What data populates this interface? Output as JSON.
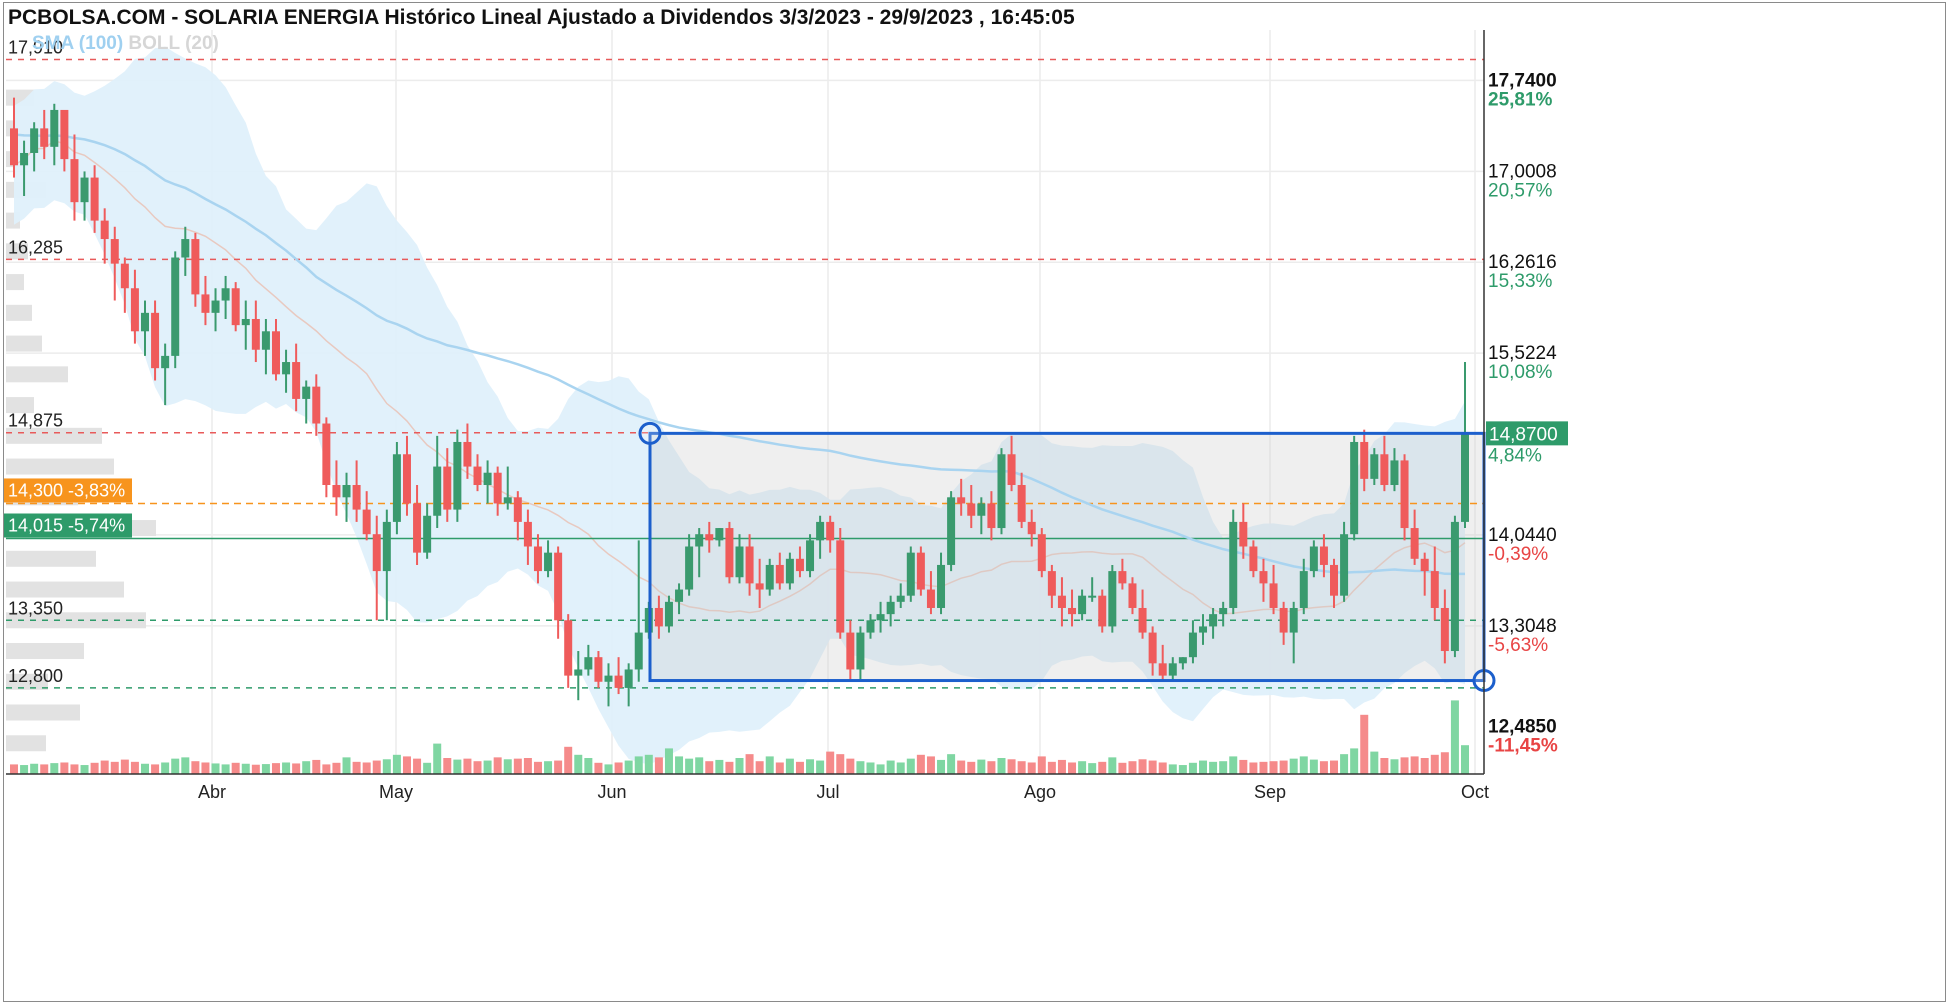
{
  "title": "PCBOLSA.COM - SOLARIA ENERGIA Histórico Lineal Ajustado a Dividendos 3/3/2023 - 29/9/2023 , 16:45:05",
  "indicators": {
    "sma": "SMA (100)",
    "boll": "BOLL (20)"
  },
  "colors": {
    "up": "#3a9a6e",
    "down": "#ef5b5b",
    "sma": "#a9d4f0",
    "boll_fill": "#dff0fb",
    "box": "#1c5fcc",
    "orange": "#f7941d",
    "green_line": "#2e9b6a"
  },
  "chart_data": {
    "type": "candlestick",
    "ylim": [
      12.1,
      18.15
    ],
    "x_ticks": [
      "Abr",
      "May",
      "Jun",
      "Jul",
      "Ago",
      "Sep",
      "Oct"
    ],
    "right_axis": [
      {
        "price": "17,7400",
        "pct": "25,81%",
        "bold": true,
        "pct_color": "green"
      },
      {
        "price": "17,0008",
        "pct": "20,57%",
        "bold": false,
        "pct_color": "green"
      },
      {
        "price": "16,2616",
        "pct": "15,33%",
        "bold": false,
        "pct_color": "green"
      },
      {
        "price": "15,5224",
        "pct": "10,08%",
        "bold": false,
        "pct_color": "green"
      },
      {
        "price": "14,0440",
        "pct": "-0,39%",
        "bold": false,
        "pct_color": "red"
      },
      {
        "price": "13,3048",
        "pct": "-5,63%",
        "bold": false,
        "pct_color": "red"
      },
      {
        "price": "12,4850",
        "pct": "-11,45%",
        "bold": true,
        "pct_color": "red"
      }
    ],
    "last_price": {
      "price": "14,8700",
      "pct": "4,84%"
    },
    "levels": [
      {
        "value": 17.91,
        "label": "17,910",
        "style": "red-dash"
      },
      {
        "value": 16.285,
        "label": "16,285",
        "style": "red-dash"
      },
      {
        "value": 14.875,
        "label": "14,875",
        "style": "red-dash"
      },
      {
        "value": 14.3,
        "label": "14,300  -3,83%",
        "style": "orange-badge"
      },
      {
        "value": 14.015,
        "label": "14,015  -5,74%",
        "style": "green-badge"
      },
      {
        "value": 13.35,
        "label": "13,350",
        "style": "green-dash"
      },
      {
        "value": 12.8,
        "label": "12,800",
        "style": "green-dash"
      }
    ],
    "range_box": {
      "top": 14.87,
      "bottom": 12.86
    },
    "candles": [
      [
        17.35,
        17.6,
        16.95,
        17.05
      ],
      [
        17.05,
        17.25,
        16.8,
        17.15
      ],
      [
        17.15,
        17.4,
        17.0,
        17.35
      ],
      [
        17.35,
        17.5,
        17.1,
        17.2
      ],
      [
        17.2,
        17.55,
        17.05,
        17.5
      ],
      [
        17.5,
        17.45,
        17.0,
        17.1
      ],
      [
        17.1,
        17.3,
        16.6,
        16.75
      ],
      [
        16.75,
        17.0,
        16.6,
        16.95
      ],
      [
        16.95,
        17.05,
        16.5,
        16.6
      ],
      [
        16.6,
        16.7,
        16.25,
        16.45
      ],
      [
        16.45,
        16.55,
        15.95,
        16.25
      ],
      [
        16.25,
        16.3,
        15.85,
        16.05
      ],
      [
        16.05,
        16.2,
        15.6,
        15.7
      ],
      [
        15.7,
        15.95,
        15.5,
        15.85
      ],
      [
        15.85,
        15.95,
        15.3,
        15.4
      ],
      [
        15.4,
        15.6,
        15.1,
        15.5
      ],
      [
        15.5,
        16.35,
        15.4,
        16.3
      ],
      [
        16.3,
        16.55,
        16.15,
        16.45
      ],
      [
        16.45,
        16.5,
        15.9,
        16.0
      ],
      [
        16.0,
        16.15,
        15.75,
        15.85
      ],
      [
        15.85,
        16.05,
        15.7,
        15.95
      ],
      [
        15.95,
        16.15,
        15.8,
        16.05
      ],
      [
        16.05,
        16.1,
        15.7,
        15.75
      ],
      [
        15.75,
        15.95,
        15.55,
        15.8
      ],
      [
        15.8,
        15.95,
        15.45,
        15.55
      ],
      [
        15.55,
        15.8,
        15.35,
        15.7
      ],
      [
        15.7,
        15.8,
        15.3,
        15.35
      ],
      [
        15.35,
        15.55,
        15.2,
        15.45
      ],
      [
        15.45,
        15.6,
        15.05,
        15.15
      ],
      [
        15.15,
        15.3,
        14.95,
        15.25
      ],
      [
        15.25,
        15.35,
        14.85,
        14.95
      ],
      [
        14.95,
        15.0,
        14.35,
        14.45
      ],
      [
        14.45,
        14.65,
        14.2,
        14.35
      ],
      [
        14.35,
        14.55,
        14.15,
        14.45
      ],
      [
        14.45,
        14.65,
        14.15,
        14.25
      ],
      [
        14.25,
        14.4,
        14.0,
        14.05
      ],
      [
        14.05,
        14.2,
        13.35,
        13.75
      ],
      [
        13.75,
        14.25,
        13.35,
        14.15
      ],
      [
        14.15,
        14.8,
        14.05,
        14.7
      ],
      [
        14.7,
        14.85,
        14.2,
        14.3
      ],
      [
        14.3,
        14.45,
        13.8,
        13.9
      ],
      [
        13.9,
        14.3,
        13.85,
        14.2
      ],
      [
        14.2,
        14.85,
        14.1,
        14.6
      ],
      [
        14.6,
        14.75,
        14.15,
        14.25
      ],
      [
        14.25,
        14.9,
        14.15,
        14.8
      ],
      [
        14.8,
        14.95,
        14.5,
        14.6
      ],
      [
        14.6,
        14.7,
        14.4,
        14.45
      ],
      [
        14.45,
        14.65,
        14.3,
        14.55
      ],
      [
        14.55,
        14.6,
        14.2,
        14.3
      ],
      [
        14.3,
        14.6,
        14.25,
        14.35
      ],
      [
        14.35,
        14.4,
        14.0,
        14.15
      ],
      [
        14.15,
        14.25,
        13.8,
        13.95
      ],
      [
        13.95,
        14.05,
        13.65,
        13.75
      ],
      [
        13.75,
        14.0,
        13.7,
        13.9
      ],
      [
        13.9,
        13.95,
        13.2,
        13.35
      ],
      [
        13.35,
        13.4,
        12.8,
        12.9
      ],
      [
        12.9,
        13.1,
        12.7,
        12.95
      ],
      [
        12.95,
        13.15,
        12.9,
        13.05
      ],
      [
        13.05,
        13.1,
        12.8,
        12.85
      ],
      [
        12.85,
        13.0,
        12.65,
        12.9
      ],
      [
        12.9,
        13.05,
        12.75,
        12.8
      ],
      [
        12.8,
        13.0,
        12.65,
        12.95
      ],
      [
        12.95,
        14.0,
        12.85,
        13.25
      ],
      [
        13.25,
        13.5,
        13.2,
        13.45
      ],
      [
        13.45,
        13.55,
        13.2,
        13.3
      ],
      [
        13.3,
        13.55,
        13.25,
        13.5
      ],
      [
        13.5,
        13.65,
        13.4,
        13.6
      ],
      [
        13.6,
        14.05,
        13.55,
        13.95
      ],
      [
        13.95,
        14.1,
        13.7,
        14.05
      ],
      [
        14.05,
        14.15,
        13.9,
        14.0
      ],
      [
        14.0,
        14.1,
        13.95,
        14.1
      ],
      [
        14.1,
        14.15,
        13.65,
        13.7
      ],
      [
        13.7,
        14.05,
        13.65,
        13.95
      ],
      [
        13.95,
        14.05,
        13.55,
        13.65
      ],
      [
        13.65,
        13.85,
        13.45,
        13.6
      ],
      [
        13.6,
        13.85,
        13.55,
        13.8
      ],
      [
        13.8,
        13.9,
        13.6,
        13.65
      ],
      [
        13.65,
        13.9,
        13.6,
        13.85
      ],
      [
        13.85,
        13.95,
        13.7,
        13.75
      ],
      [
        13.75,
        14.05,
        13.7,
        14.0
      ],
      [
        14.0,
        14.2,
        13.85,
        14.15
      ],
      [
        14.15,
        14.2,
        13.9,
        14.0
      ],
      [
        14.0,
        14.1,
        13.2,
        13.25
      ],
      [
        13.25,
        13.35,
        12.85,
        12.95
      ],
      [
        12.95,
        13.3,
        12.85,
        13.25
      ],
      [
        13.25,
        13.4,
        13.2,
        13.35
      ],
      [
        13.35,
        13.5,
        13.25,
        13.4
      ],
      [
        13.4,
        13.55,
        13.3,
        13.5
      ],
      [
        13.5,
        13.65,
        13.45,
        13.55
      ],
      [
        13.55,
        13.95,
        13.5,
        13.9
      ],
      [
        13.9,
        13.95,
        13.55,
        13.6
      ],
      [
        13.6,
        13.75,
        13.4,
        13.45
      ],
      [
        13.45,
        13.9,
        13.4,
        13.8
      ],
      [
        13.8,
        14.4,
        13.75,
        14.35
      ],
      [
        14.35,
        14.5,
        14.2,
        14.3
      ],
      [
        14.3,
        14.45,
        14.1,
        14.2
      ],
      [
        14.2,
        14.35,
        14.05,
        14.3
      ],
      [
        14.3,
        14.4,
        14.0,
        14.1
      ],
      [
        14.1,
        14.75,
        14.05,
        14.7
      ],
      [
        14.7,
        14.85,
        14.4,
        14.45
      ],
      [
        14.45,
        14.55,
        14.1,
        14.15
      ],
      [
        14.15,
        14.25,
        13.95,
        14.05
      ],
      [
        14.05,
        14.1,
        13.7,
        13.75
      ],
      [
        13.75,
        13.8,
        13.45,
        13.55
      ],
      [
        13.55,
        13.7,
        13.3,
        13.45
      ],
      [
        13.45,
        13.6,
        13.3,
        13.4
      ],
      [
        13.4,
        13.6,
        13.35,
        13.55
      ],
      [
        13.55,
        13.7,
        13.5,
        13.55
      ],
      [
        13.55,
        13.6,
        13.25,
        13.3
      ],
      [
        13.3,
        13.8,
        13.25,
        13.75
      ],
      [
        13.75,
        13.85,
        13.6,
        13.65
      ],
      [
        13.65,
        13.7,
        13.4,
        13.45
      ],
      [
        13.45,
        13.6,
        13.2,
        13.25
      ],
      [
        13.25,
        13.3,
        12.9,
        13.0
      ],
      [
        13.0,
        13.15,
        12.85,
        12.9
      ],
      [
        12.9,
        13.05,
        12.85,
        13.0
      ],
      [
        13.0,
        13.05,
        12.95,
        13.05
      ],
      [
        13.05,
        13.35,
        13.0,
        13.25
      ],
      [
        13.25,
        13.4,
        13.15,
        13.3
      ],
      [
        13.3,
        13.45,
        13.2,
        13.4
      ],
      [
        13.4,
        13.5,
        13.3,
        13.45
      ],
      [
        13.45,
        14.25,
        13.4,
        14.15
      ],
      [
        14.15,
        14.3,
        13.85,
        13.95
      ],
      [
        13.95,
        14.0,
        13.7,
        13.75
      ],
      [
        13.75,
        13.85,
        13.5,
        13.65
      ],
      [
        13.65,
        13.8,
        13.4,
        13.45
      ],
      [
        13.45,
        13.5,
        13.15,
        13.25
      ],
      [
        13.25,
        13.5,
        13.0,
        13.45
      ],
      [
        13.45,
        13.85,
        13.4,
        13.75
      ],
      [
        13.75,
        14.0,
        13.7,
        13.95
      ],
      [
        13.95,
        14.05,
        13.7,
        13.8
      ],
      [
        13.8,
        13.85,
        13.45,
        13.55
      ],
      [
        13.55,
        14.15,
        13.5,
        14.05
      ],
      [
        14.05,
        14.85,
        14.0,
        14.8
      ],
      [
        14.8,
        14.9,
        14.4,
        14.5
      ],
      [
        14.5,
        14.75,
        14.45,
        14.7
      ],
      [
        14.7,
        14.85,
        14.4,
        14.45
      ],
      [
        14.45,
        14.75,
        14.4,
        14.65
      ],
      [
        14.65,
        14.7,
        14.0,
        14.1
      ],
      [
        14.1,
        14.25,
        13.8,
        13.85
      ],
      [
        13.85,
        13.9,
        13.55,
        13.75
      ],
      [
        13.75,
        13.95,
        13.35,
        13.45
      ],
      [
        13.45,
        13.6,
        13.0,
        13.1
      ],
      [
        13.1,
        14.2,
        13.05,
        14.15
      ],
      [
        14.15,
        15.45,
        14.1,
        14.87
      ]
    ],
    "volumes": [
      0.3,
      0.28,
      0.32,
      0.3,
      0.34,
      0.36,
      0.3,
      0.28,
      0.35,
      0.42,
      0.38,
      0.45,
      0.38,
      0.32,
      0.3,
      0.36,
      0.48,
      0.52,
      0.4,
      0.36,
      0.33,
      0.3,
      0.35,
      0.32,
      0.29,
      0.31,
      0.34,
      0.36,
      0.33,
      0.4,
      0.44,
      0.3,
      0.35,
      0.52,
      0.38,
      0.36,
      0.42,
      0.46,
      0.6,
      0.55,
      0.48,
      0.35,
      0.95,
      0.5,
      0.45,
      0.48,
      0.4,
      0.42,
      0.52,
      0.46,
      0.48,
      0.5,
      0.38,
      0.4,
      0.42,
      0.85,
      0.6,
      0.5,
      0.35,
      0.3,
      0.36,
      0.42,
      0.55,
      0.6,
      0.52,
      0.8,
      0.55,
      0.48,
      0.52,
      0.4,
      0.44,
      0.38,
      0.5,
      0.62,
      0.4,
      0.55,
      0.36,
      0.48,
      0.38,
      0.46,
      0.42,
      0.7,
      0.62,
      0.48,
      0.4,
      0.36,
      0.3,
      0.42,
      0.36,
      0.48,
      0.6,
      0.55,
      0.44,
      0.62,
      0.42,
      0.38,
      0.45,
      0.4,
      0.5,
      0.46,
      0.4,
      0.36,
      0.55,
      0.38,
      0.44,
      0.36,
      0.4,
      0.34,
      0.38,
      0.52,
      0.35,
      0.4,
      0.46,
      0.42,
      0.36,
      0.3,
      0.28,
      0.35,
      0.42,
      0.38,
      0.4,
      0.55,
      0.44,
      0.36,
      0.38,
      0.4,
      0.42,
      0.48,
      0.55,
      0.45,
      0.4,
      0.42,
      0.62,
      0.8,
      1.85,
      0.7,
      0.5,
      0.46,
      0.52,
      0.55,
      0.5,
      0.6,
      0.68,
      2.3,
      0.9
    ],
    "volume_profile": [
      {
        "price": 17.6,
        "width": 28
      },
      {
        "price": 17.35,
        "width": 38
      },
      {
        "price": 17.1,
        "width": 22
      },
      {
        "price": 16.85,
        "width": 40
      },
      {
        "price": 16.6,
        "width": 14
      },
      {
        "price": 16.35,
        "width": 22
      },
      {
        "price": 16.1,
        "width": 18
      },
      {
        "price": 15.85,
        "width": 26
      },
      {
        "price": 15.6,
        "width": 36
      },
      {
        "price": 15.35,
        "width": 62
      },
      {
        "price": 15.1,
        "width": 28
      },
      {
        "price": 14.85,
        "width": 96
      },
      {
        "price": 14.6,
        "width": 108
      },
      {
        "price": 14.35,
        "width": 72
      },
      {
        "price": 14.1,
        "width": 150
      },
      {
        "price": 13.85,
        "width": 90
      },
      {
        "price": 13.6,
        "width": 118
      },
      {
        "price": 13.35,
        "width": 140
      },
      {
        "price": 13.1,
        "width": 78
      },
      {
        "price": 12.85,
        "width": 42
      },
      {
        "price": 12.6,
        "width": 74
      },
      {
        "price": 12.35,
        "width": 40
      }
    ]
  }
}
